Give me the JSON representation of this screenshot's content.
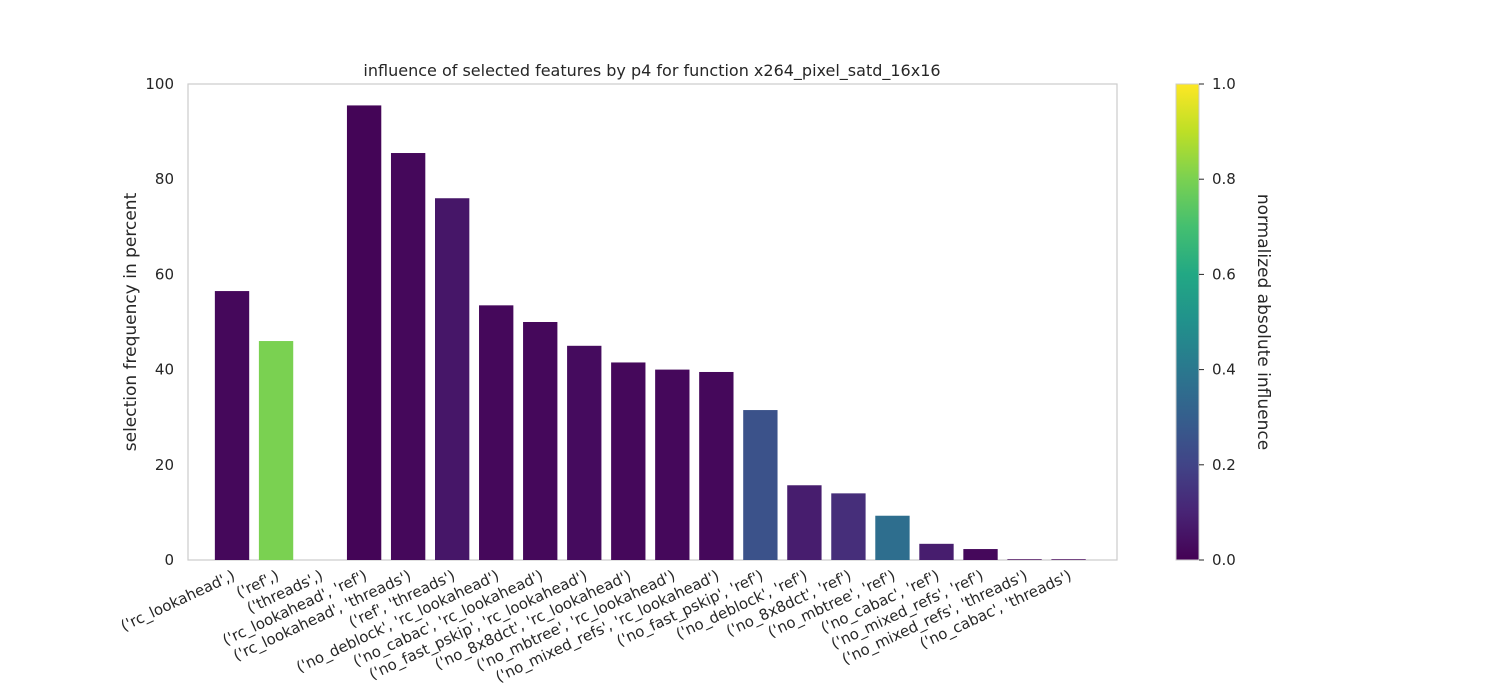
{
  "chart_data": {
    "type": "bar",
    "title": "influence of selected features by p4 for function x264_pixel_satd_16x16",
    "xlabel": "",
    "ylabel": "selection frequency in percent",
    "ylim": [
      0,
      100
    ],
    "yticks": [
      "0",
      "20",
      "40",
      "60",
      "80",
      "100"
    ],
    "grid": false,
    "categories": [
      "('rc_lookahead',)",
      "('ref',)",
      "('threads',)",
      "('rc_lookahead', 'ref')",
      "('rc_lookahead', 'threads')",
      "('ref', 'threads')",
      "('no_deblock', 'rc_lookahead')",
      "('no_cabac', 'rc_lookahead')",
      "('no_fast_pskip', 'rc_lookahead')",
      "('no_8x8dct', 'rc_lookahead')",
      "('no_mbtree', 'rc_lookahead')",
      "('no_mixed_refs', 'rc_lookahead')",
      "('no_fast_pskip', 'ref')",
      "('no_deblock', 'ref')",
      "('no_8x8dct', 'ref')",
      "('no_mbtree', 'ref')",
      "('no_cabac', 'ref')",
      "('no_mixed_refs', 'ref')",
      "('no_mixed_refs', 'threads')",
      "('no_cabac', 'threads')"
    ],
    "values": [
      56.5,
      46,
      0,
      95.5,
      85.5,
      76,
      53.5,
      50,
      45,
      41.5,
      40,
      39.5,
      31.5,
      15.7,
      14,
      9.3,
      3.4,
      2.3,
      0.15,
      0.15
    ],
    "influence": [
      0.02,
      0.8,
      0.0,
      0.01,
      0.02,
      0.06,
      0.02,
      0.02,
      0.03,
      0.02,
      0.02,
      0.02,
      0.25,
      0.08,
      0.13,
      0.36,
      0.08,
      0.02,
      0.01,
      0.01
    ],
    "colorbar": {
      "label": "normalized absolute influence",
      "colormap": "viridis",
      "range": [
        0,
        1
      ],
      "ticks": [
        "0.0",
        "0.2",
        "0.4",
        "0.6",
        "0.8",
        "1.0"
      ]
    }
  }
}
